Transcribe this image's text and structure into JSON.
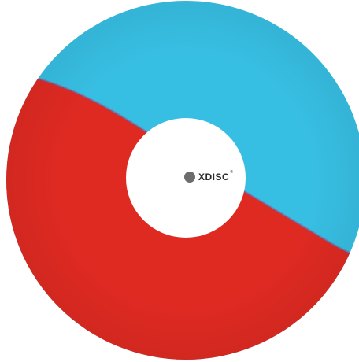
{
  "label": {
    "brand": "XDISC",
    "mark": "®"
  }
}
